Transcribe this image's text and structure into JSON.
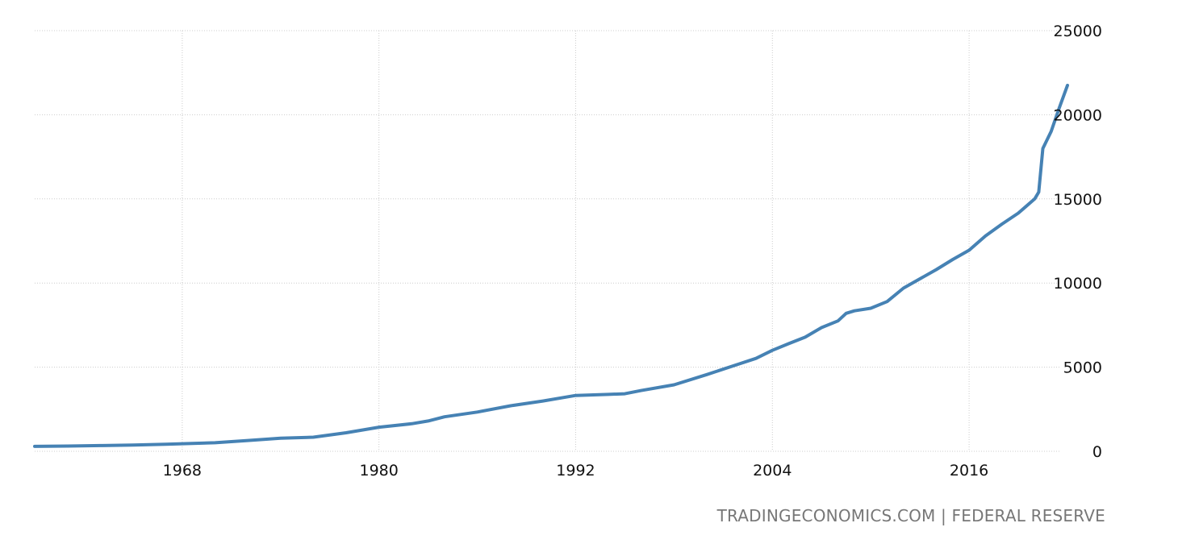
{
  "source": {
    "text": "TRADINGECONOMICS.COM | FEDERAL RESERVE"
  },
  "chart_data": {
    "type": "line",
    "title": "",
    "xlabel": "",
    "ylabel": "",
    "xlim": [
      1959,
      2022
    ],
    "ylim": [
      0,
      25000
    ],
    "x_ticks": [
      1968,
      1980,
      1992,
      2004,
      2016
    ],
    "y_ticks": [
      0,
      5000,
      10000,
      15000,
      20000,
      25000
    ],
    "grid": true,
    "legend": "none",
    "colors": {
      "line": "#4682b4",
      "grid": "#cccccc"
    },
    "series": [
      {
        "x": [
          1959,
          1961,
          1963,
          1965,
          1967,
          1968,
          1970,
          1972,
          1974,
          1976,
          1978,
          1980,
          1982,
          1983,
          1984,
          1986,
          1988,
          1990,
          1992,
          1994,
          1995,
          1996,
          1998,
          2000,
          2002,
          2003,
          2004,
          2005,
          2006,
          2007,
          2008,
          2008.5,
          2009,
          2010,
          2011,
          2012,
          2013,
          2014,
          2015,
          2016,
          2017,
          2018,
          2019,
          2020,
          2020.25,
          2020.5,
          2021,
          2021.5,
          2022
        ],
        "values": [
          290,
          310,
          340,
          370,
          420,
          450,
          510,
          640,
          780,
          840,
          1100,
          1430,
          1640,
          1800,
          2050,
          2330,
          2700,
          2990,
          3320,
          3380,
          3420,
          3610,
          3950,
          4560,
          5200,
          5520,
          6000,
          6400,
          6780,
          7350,
          7750,
          8200,
          8350,
          8500,
          8900,
          9700,
          10250,
          10800,
          11400,
          11950,
          12800,
          13500,
          14150,
          15000,
          15400,
          18000,
          19000,
          20400,
          21750
        ]
      }
    ]
  }
}
